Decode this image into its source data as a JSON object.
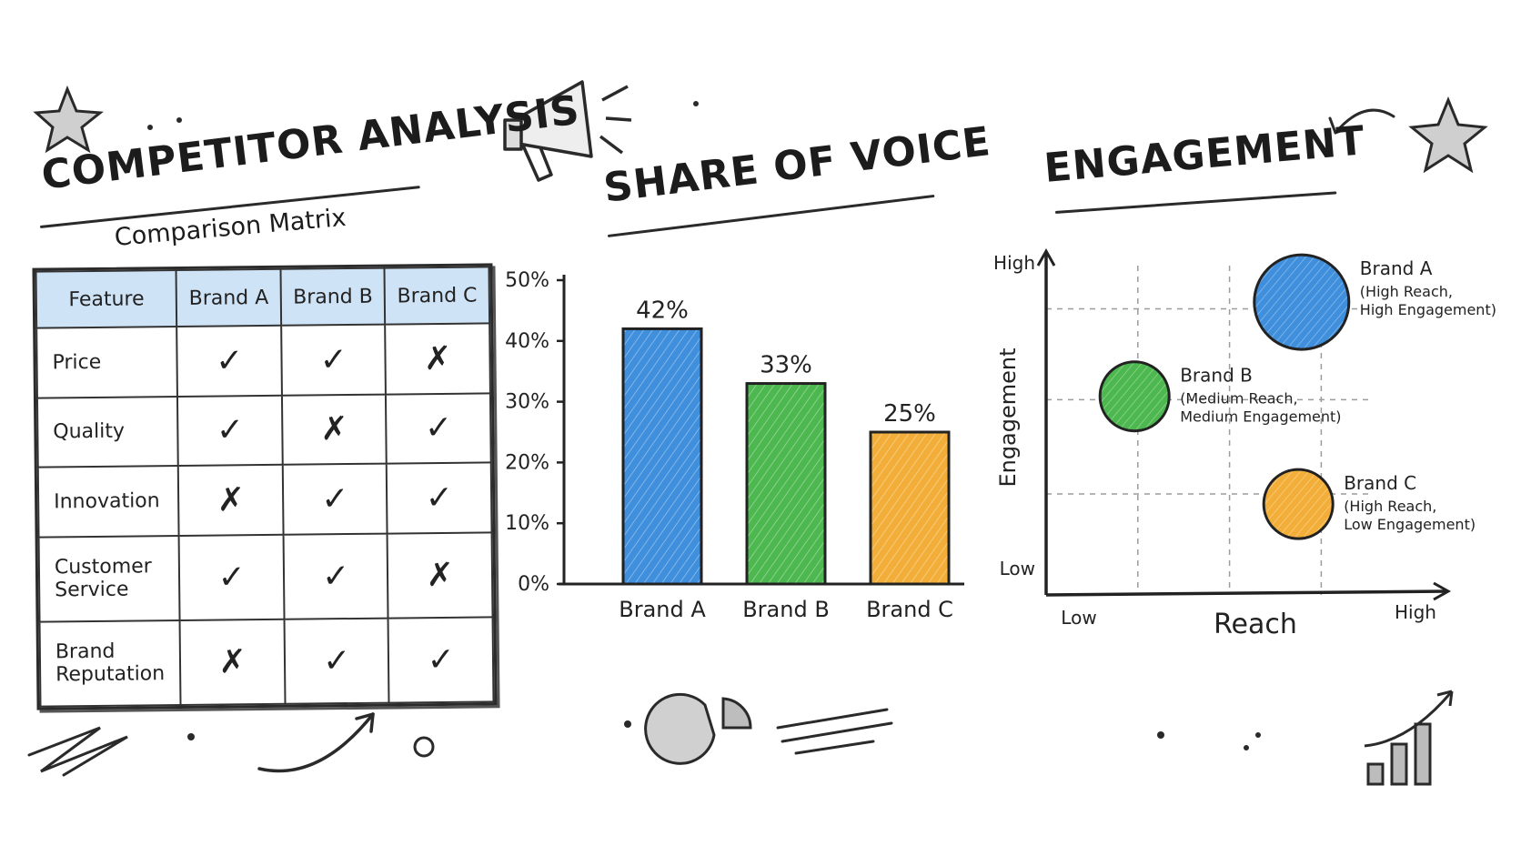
{
  "panel1": {
    "title": "COMPETITOR ANALYSIS",
    "subtitle": "Comparison Matrix",
    "columns": [
      "Feature",
      "Brand A",
      "Brand B",
      "Brand C"
    ],
    "rows": [
      {
        "feature": "Price",
        "marks": [
          "✓",
          "✓",
          "✗"
        ]
      },
      {
        "feature": "Quality",
        "marks": [
          "✓",
          "✗",
          "✓"
        ]
      },
      {
        "feature": "Innovation",
        "marks": [
          "✗",
          "✓",
          "✓"
        ]
      },
      {
        "feature": "Customer Service",
        "marks": [
          "✓",
          "✓",
          "✗"
        ]
      },
      {
        "feature": "Brand Reputation",
        "marks": [
          "✗",
          "✓",
          "✓"
        ]
      }
    ]
  },
  "panel2": {
    "title": "SHARE OF VOICE"
  },
  "panel3": {
    "title": "ENGAGEMENT"
  },
  "colors": {
    "blue": "#3f8fdc",
    "green": "#4cb84f",
    "orange": "#f2ae38",
    "header_blue": "#cfe3f6",
    "check": "#2d8a3c",
    "cross": "#d0342c"
  },
  "icons": [
    "star-icon",
    "megaphone-icon",
    "pie-chart-icon",
    "arrow-icon",
    "growth-chart-icon"
  ],
  "chart_data": [
    {
      "type": "bar",
      "title": "SHARE OF VOICE",
      "categories": [
        "Brand A",
        "Brand B",
        "Brand C"
      ],
      "values": [
        42,
        33,
        25
      ],
      "value_labels": [
        "42%",
        "33%",
        "25%"
      ],
      "colors": [
        "#3f8fdc",
        "#4cb84f",
        "#f2ae38"
      ],
      "ylim": [
        0,
        50
      ],
      "yticks": [
        "0%",
        "10%",
        "20%",
        "30%",
        "40%",
        "50%"
      ],
      "grid": false
    },
    {
      "type": "scatter",
      "title": "ENGAGEMENT",
      "xlabel": "Reach",
      "ylabel": "Engagement",
      "xticks": [
        "Low",
        "High"
      ],
      "yticks": [
        "Low",
        "High"
      ],
      "grid": true,
      "points": [
        {
          "name": "Brand A",
          "note1": "(High Reach,",
          "note2": "High Engagement)",
          "x": 0.78,
          "y": 0.87,
          "size": 3,
          "color": "#3f8fdc"
        },
        {
          "name": "Brand B",
          "note1": "(Medium Reach,",
          "note2": "Medium Engagement)",
          "x": 0.27,
          "y": 0.59,
          "size": 2,
          "color": "#4cb84f"
        },
        {
          "name": "Brand C",
          "note1": "(High Reach,",
          "note2": "Low Engagement)",
          "x": 0.77,
          "y": 0.27,
          "size": 2,
          "color": "#f2ae38"
        }
      ]
    }
  ]
}
